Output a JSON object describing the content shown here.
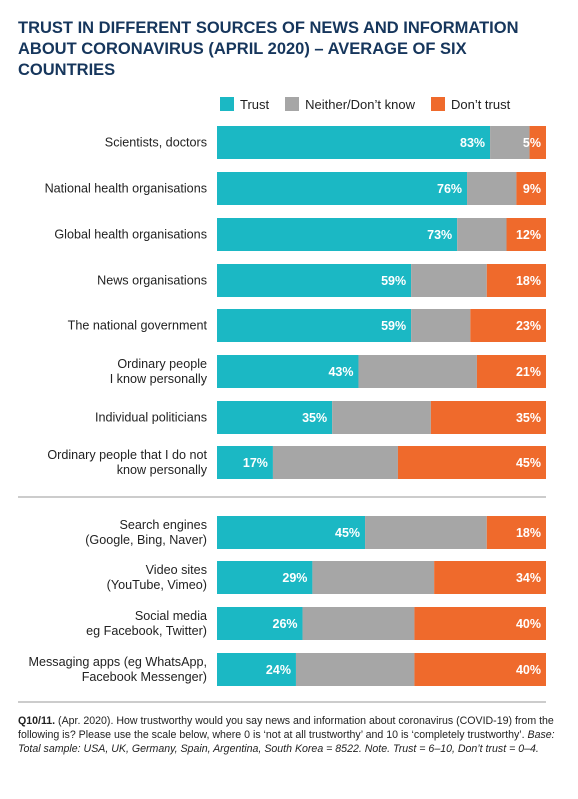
{
  "title_lines": [
    "TRUST IN DIFFERENT SOURCES OF NEWS AND INFORMATION",
    "ABOUT CORONAVIRUS (APRIL 2020) – AVERAGE OF SIX",
    "COUNTRIES"
  ],
  "colors": {
    "trust": "#1bb8c4",
    "neither": "#a6a6a6",
    "dont_trust": "#ef6a2c",
    "title": "#16365c"
  },
  "footnote": {
    "code": "Q10/11.",
    "question": " (Apr. 2020). How trustworthy would you say news and information about coronavirus (COVID-19) from the following is? Please use the scale below, where 0 is ‘not at all trustworthy’ and 10 is ‘completely trustworthy’. ",
    "base": "Base: Total sample: USA, UK, Germany, Spain, Argentina, South Korea = 8522. Note. Trust = 6–10, Don’t trust = 0–4."
  },
  "chart_data": {
    "type": "bar",
    "orientation": "horizontal",
    "stacked": true,
    "xlim": [
      0,
      100
    ],
    "legend_position": "top-right",
    "series": [
      {
        "name": "Trust",
        "values": [
          83,
          76,
          73,
          59,
          59,
          43,
          35,
          17,
          45,
          29,
          26,
          24
        ]
      },
      {
        "name": "Neither/Don’t know",
        "values": [
          12,
          15,
          15,
          23,
          18,
          36,
          30,
          38,
          37,
          37,
          34,
          36
        ]
      },
      {
        "name": "Don’t trust",
        "values": [
          5,
          9,
          12,
          18,
          23,
          21,
          35,
          45,
          18,
          34,
          40,
          40
        ]
      }
    ],
    "value_labels": {
      "trust": [
        "83%",
        "76%",
        "73%",
        "59%",
        "59%",
        "43%",
        "35%",
        "17%",
        "45%",
        "29%",
        "26%",
        "24%"
      ],
      "dont_trust": [
        "5%",
        "9%",
        "12%",
        "18%",
        "23%",
        "21%",
        "35%",
        "45%",
        "18%",
        "34%",
        "40%",
        "40%"
      ]
    },
    "categories": [
      [
        "Scientists, doctors"
      ],
      [
        "National health organisations"
      ],
      [
        "Global health organisations"
      ],
      [
        "News organisations"
      ],
      [
        "The national government"
      ],
      [
        "Ordinary people",
        "I know personally"
      ],
      [
        "Individual politicians"
      ],
      [
        "Ordinary people that I do not",
        "know personally"
      ],
      [
        "Search engines",
        "(Google, Bing, Naver)"
      ],
      [
        "Video sites",
        "(YouTube, Vimeo)"
      ],
      [
        "Social media",
        "eg Facebook, Twitter)"
      ],
      [
        "Messaging apps (eg WhatsApp,",
        "Facebook Messenger)"
      ]
    ],
    "groups": [
      [
        0,
        7
      ],
      [
        8,
        11
      ]
    ]
  }
}
